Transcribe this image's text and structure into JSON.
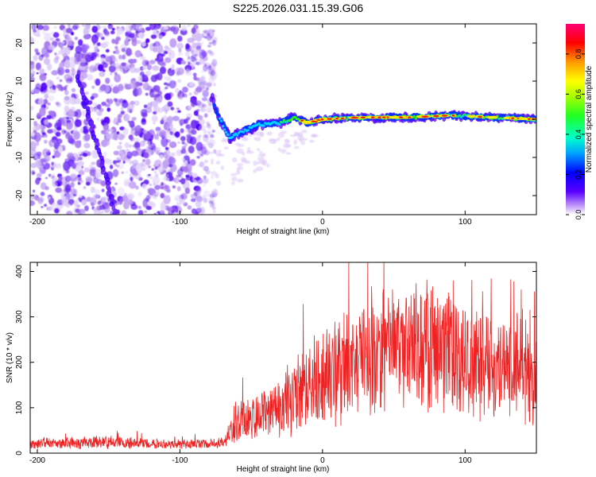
{
  "chart_data": [
    {
      "type": "heatmap",
      "title": "S225.2026.031.15.39.G06",
      "xlabel": "Height of straight line (km)",
      "ylabel": "Frequency (Hz)",
      "xlim": [
        -205,
        150
      ],
      "ylim": [
        -25,
        25
      ],
      "x_ticks": [
        -200,
        -100,
        0,
        100
      ],
      "x_tick_labels": [
        "-200",
        "-100",
        "0",
        "100"
      ],
      "y_ticks": [
        -20,
        -10,
        0,
        10,
        20
      ],
      "y_tick_labels": [
        "-20",
        "-10",
        "0",
        "10",
        "20"
      ],
      "colorbar": {
        "label": "Normalized spectral amplitude",
        "range": [
          0,
          0.95
        ],
        "ticks": [
          0.0,
          0.2,
          0.4,
          0.6,
          0.8
        ],
        "tick_labels": [
          "0.0",
          "0.2",
          "0.4",
          "0.6",
          "0.8"
        ]
      },
      "features": {
        "noise_region_x": [
          -205,
          -75
        ],
        "diagonal_streak": [
          [
            -172,
            12
          ],
          [
            -145,
            -25
          ]
        ],
        "signal_trace": [
          [
            -78,
            6
          ],
          [
            -72,
            0
          ],
          [
            -65,
            -5
          ],
          [
            -55,
            -3
          ],
          [
            -45,
            -1.5
          ],
          [
            -30,
            -1
          ],
          [
            -20,
            0.5
          ],
          [
            -10,
            -1
          ],
          [
            0,
            0
          ],
          [
            30,
            0.5
          ],
          [
            60,
            0.5
          ],
          [
            90,
            1
          ],
          [
            120,
            0.5
          ],
          [
            150,
            0
          ]
        ]
      }
    },
    {
      "type": "line",
      "xlabel": "Height of straight line (km)",
      "ylabel": "SNR (10 * v/v)",
      "xlim": [
        -205,
        150
      ],
      "ylim": [
        0,
        420
      ],
      "x_ticks": [
        -200,
        -100,
        0,
        100
      ],
      "x_tick_labels": [
        "-200",
        "-100",
        "0",
        "100"
      ],
      "y_ticks": [
        0,
        100,
        200,
        300,
        400
      ],
      "y_tick_labels": [
        "0",
        "100",
        "200",
        "300",
        "400"
      ],
      "color": "#ee2222",
      "series": [
        {
          "name": "SNR",
          "x": [
            -205,
            -180,
            -160,
            -140,
            -120,
            -100,
            -80,
            -70,
            -60,
            -50,
            -40,
            -30,
            -20,
            -10,
            0,
            10,
            20,
            30,
            40,
            50,
            60,
            70,
            80,
            90,
            100,
            110,
            120,
            130,
            140,
            145,
            150
          ],
          "mean": [
            20,
            22,
            24,
            22,
            22,
            20,
            20,
            25,
            70,
            75,
            95,
            110,
            130,
            150,
            160,
            180,
            205,
            215,
            225,
            230,
            230,
            230,
            235,
            230,
            215,
            210,
            200,
            200,
            230,
            140,
            180
          ],
          "spread": [
            10,
            12,
            14,
            12,
            12,
            10,
            10,
            12,
            45,
            50,
            60,
            70,
            80,
            90,
            100,
            110,
            120,
            130,
            130,
            130,
            130,
            130,
            130,
            130,
            125,
            120,
            115,
            110,
            130,
            100,
            80
          ]
        }
      ]
    }
  ]
}
